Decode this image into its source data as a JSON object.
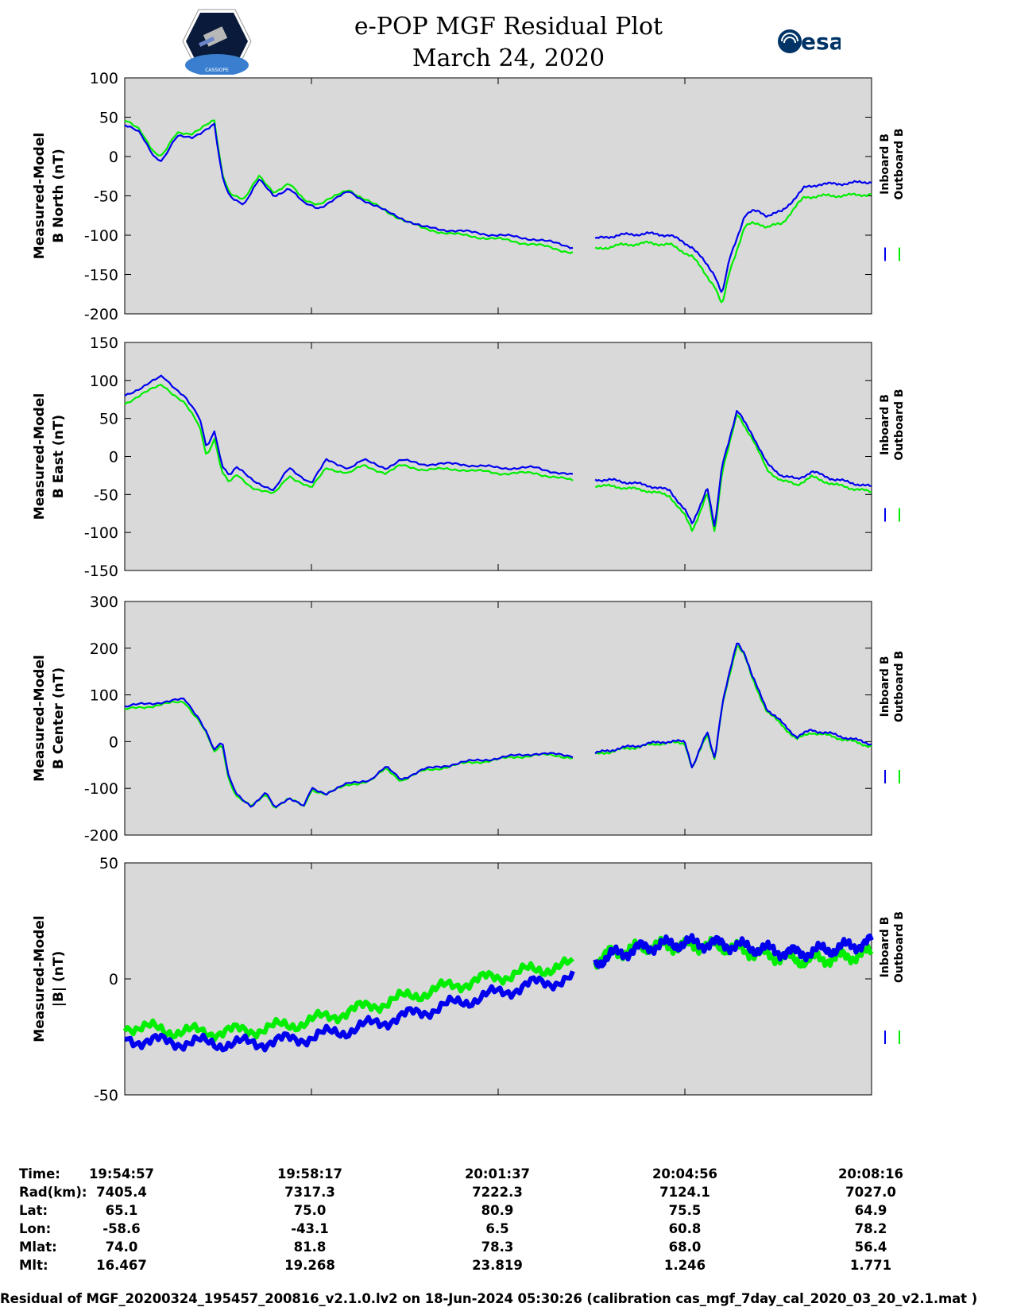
{
  "header": {
    "title_line1": "e-POP MGF Residual Plot",
    "title_line2": "March 24, 2020",
    "left_logo_text": "CASSIOPE",
    "right_logo_text": "esa"
  },
  "colors": {
    "inboard": "#0000ee",
    "outboard": "#00ee00",
    "panel_bg": "#d9d9d9"
  },
  "chart_data": [
    {
      "type": "line",
      "ylabel_line1": "Measured-Model",
      "ylabel_line2": "B North (nT)",
      "ylim": [
        -200,
        100
      ],
      "yticks": [
        "100",
        "50",
        "0",
        "-50",
        "-100",
        "-150",
        "-200"
      ],
      "series": [
        {
          "name": "Inboard B",
          "x": [
            0,
            0.02,
            0.04,
            0.05,
            0.07,
            0.09,
            0.1,
            0.12,
            0.13,
            0.14,
            0.16,
            0.18,
            0.2,
            0.21,
            0.22,
            0.24,
            0.26,
            0.28,
            0.3,
            0.35,
            0.4,
            0.45,
            0.5,
            0.55,
            0.6
          ],
          "y": [
            40,
            30,
            0,
            -5,
            25,
            25,
            30,
            40,
            -25,
            -50,
            -60,
            -30,
            -50,
            -45,
            -40,
            -60,
            -65,
            -55,
            -45,
            -70,
            -90,
            -95,
            -100,
            -105,
            -115
          ]
        },
        {
          "name": "Inboard B",
          "x": [
            0.63,
            0.66,
            0.7,
            0.73,
            0.76,
            0.79,
            0.8,
            0.81,
            0.83,
            0.84,
            0.85,
            0.86,
            0.88,
            0.9,
            0.91,
            0.93,
            0.95,
            1.0
          ],
          "y": [
            -105,
            -100,
            -98,
            -100,
            -115,
            -150,
            -175,
            -130,
            -75,
            -70,
            -70,
            -75,
            -70,
            -50,
            -40,
            -35,
            -35,
            -32
          ]
        },
        {
          "name": "Outboard B",
          "x": [
            0,
            0.02,
            0.04,
            0.05,
            0.07,
            0.09,
            0.1,
            0.12,
            0.13,
            0.14,
            0.16,
            0.18,
            0.2,
            0.21,
            0.22,
            0.24,
            0.26,
            0.28,
            0.3,
            0.35,
            0.4,
            0.45,
            0.5,
            0.55,
            0.6
          ],
          "y": [
            45,
            35,
            5,
            0,
            30,
            30,
            35,
            45,
            -20,
            -45,
            -55,
            -25,
            -45,
            -40,
            -35,
            -55,
            -60,
            -52,
            -42,
            -70,
            -92,
            -100,
            -105,
            -112,
            -122
          ]
        },
        {
          "name": "Outboard B",
          "x": [
            0.63,
            0.66,
            0.7,
            0.73,
            0.76,
            0.79,
            0.8,
            0.81,
            0.83,
            0.84,
            0.85,
            0.86,
            0.88,
            0.9,
            0.91,
            0.93,
            0.95,
            1.0
          ],
          "y": [
            -118,
            -113,
            -110,
            -112,
            -127,
            -165,
            -190,
            -145,
            -90,
            -85,
            -85,
            -90,
            -85,
            -62,
            -52,
            -50,
            -50,
            -48
          ]
        }
      ]
    },
    {
      "type": "line",
      "ylabel_line1": "Measured-Model",
      "ylabel_line2": "B East (nT)",
      "ylim": [
        -150,
        150
      ],
      "yticks": [
        "150",
        "100",
        "50",
        "0",
        "-50",
        "-100",
        "-150"
      ],
      "series": [
        {
          "name": "Inboard B",
          "x": [
            0,
            0.02,
            0.05,
            0.08,
            0.1,
            0.11,
            0.12,
            0.13,
            0.14,
            0.15,
            0.17,
            0.2,
            0.22,
            0.25,
            0.27,
            0.3,
            0.32,
            0.35,
            0.37,
            0.4,
            0.45,
            0.5,
            0.55,
            0.6
          ],
          "y": [
            80,
            90,
            105,
            80,
            50,
            10,
            35,
            -10,
            -25,
            -15,
            -30,
            -45,
            -15,
            -35,
            -5,
            -15,
            -5,
            -15,
            -5,
            -10,
            -10,
            -15,
            -15,
            -25
          ]
        },
        {
          "name": "Inboard B",
          "x": [
            0.63,
            0.66,
            0.7,
            0.73,
            0.75,
            0.76,
            0.78,
            0.79,
            0.8,
            0.82,
            0.84,
            0.86,
            0.88,
            0.9,
            0.92,
            0.95,
            1.0
          ],
          "y": [
            -30,
            -32,
            -38,
            -45,
            -70,
            -90,
            -40,
            -95,
            -10,
            60,
            30,
            -10,
            -25,
            -30,
            -20,
            -30,
            -40
          ]
        },
        {
          "name": "Outboard B",
          "x": [
            0,
            0.02,
            0.05,
            0.08,
            0.1,
            0.11,
            0.12,
            0.13,
            0.14,
            0.15,
            0.17,
            0.2,
            0.22,
            0.25,
            0.27,
            0.3,
            0.32,
            0.35,
            0.37,
            0.4,
            0.45,
            0.5,
            0.55,
            0.6
          ],
          "y": [
            70,
            80,
            95,
            70,
            40,
            0,
            25,
            -20,
            -35,
            -25,
            -40,
            -50,
            -25,
            -42,
            -15,
            -22,
            -12,
            -22,
            -12,
            -17,
            -17,
            -22,
            -22,
            -32
          ]
        },
        {
          "name": "Outboard B",
          "x": [
            0.63,
            0.66,
            0.7,
            0.73,
            0.75,
            0.76,
            0.78,
            0.79,
            0.8,
            0.82,
            0.84,
            0.86,
            0.88,
            0.9,
            0.92,
            0.95,
            1.0
          ],
          "y": [
            -38,
            -40,
            -45,
            -52,
            -78,
            -98,
            -48,
            -102,
            -18,
            55,
            25,
            -18,
            -32,
            -37,
            -27,
            -37,
            -47
          ]
        }
      ]
    },
    {
      "type": "line",
      "ylabel_line1": "Measured-Model",
      "ylabel_line2": "B Center (nT)",
      "ylim": [
        -200,
        300
      ],
      "yticks": [
        "300",
        "200",
        "100",
        "0",
        "-100",
        "-200"
      ],
      "series": [
        {
          "name": "Inboard B",
          "x": [
            0,
            0.05,
            0.08,
            0.1,
            0.11,
            0.12,
            0.13,
            0.14,
            0.15,
            0.17,
            0.19,
            0.2,
            0.22,
            0.24,
            0.25,
            0.27,
            0.3,
            0.33,
            0.35,
            0.37,
            0.4,
            0.45,
            0.5,
            0.55,
            0.6
          ],
          "y": [
            75,
            85,
            90,
            50,
            20,
            -20,
            0,
            -80,
            -110,
            -140,
            -110,
            -140,
            -120,
            -140,
            -100,
            -110,
            -90,
            -80,
            -55,
            -80,
            -60,
            -45,
            -35,
            -25,
            -30
          ]
        },
        {
          "name": "Inboard B",
          "x": [
            0.63,
            0.66,
            0.7,
            0.72,
            0.75,
            0.76,
            0.78,
            0.79,
            0.8,
            0.82,
            0.83,
            0.84,
            0.86,
            0.88,
            0.9,
            0.92,
            0.95,
            1.0
          ],
          "y": [
            -25,
            -15,
            -5,
            0,
            0,
            -55,
            20,
            -35,
            80,
            215,
            190,
            140,
            70,
            40,
            10,
            25,
            15,
            -5
          ]
        },
        {
          "name": "Outboard B",
          "x": [
            0,
            0.05,
            0.08,
            0.1,
            0.11,
            0.12,
            0.13,
            0.14,
            0.15,
            0.17,
            0.19,
            0.2,
            0.22,
            0.24,
            0.25,
            0.27,
            0.3,
            0.33,
            0.35,
            0.37,
            0.4,
            0.45,
            0.5,
            0.55,
            0.6
          ],
          "y": [
            68,
            80,
            85,
            45,
            15,
            -25,
            -5,
            -85,
            -115,
            -140,
            -112,
            -140,
            -122,
            -140,
            -102,
            -112,
            -92,
            -83,
            -58,
            -83,
            -63,
            -48,
            -38,
            -28,
            -33
          ]
        },
        {
          "name": "Outboard B",
          "x": [
            0.63,
            0.66,
            0.7,
            0.72,
            0.75,
            0.76,
            0.78,
            0.79,
            0.8,
            0.82,
            0.83,
            0.84,
            0.86,
            0.88,
            0.9,
            0.92,
            0.95,
            1.0
          ],
          "y": [
            -28,
            -18,
            -8,
            -3,
            -3,
            -58,
            17,
            -38,
            75,
            210,
            185,
            135,
            65,
            35,
            5,
            20,
            10,
            -10
          ]
        }
      ]
    },
    {
      "type": "line",
      "ylabel_line1": "Measured-Model",
      "ylabel_line2": "|B| (nT)",
      "ylim": [
        -50,
        50
      ],
      "yticks": [
        "50",
        "0",
        "-50"
      ],
      "series": [
        {
          "name": "Inboard B",
          "x": [
            0,
            0.05,
            0.1,
            0.15,
            0.2,
            0.25,
            0.3,
            0.35,
            0.4,
            0.45,
            0.5,
            0.55,
            0.6
          ],
          "y": [
            -26,
            -27,
            -27.5,
            -28,
            -27,
            -25,
            -22,
            -18,
            -14,
            -10,
            -6,
            -2,
            0
          ]
        },
        {
          "name": "Inboard B",
          "x": [
            0.63,
            0.65,
            0.7,
            0.75,
            0.8,
            0.85,
            0.9,
            0.95,
            1.0
          ],
          "y": [
            7,
            10,
            14,
            15.5,
            15,
            13,
            11,
            13,
            16
          ]
        },
        {
          "name": "Outboard B",
          "x": [
            0,
            0.05,
            0.1,
            0.15,
            0.2,
            0.25,
            0.3,
            0.35,
            0.4,
            0.45,
            0.5,
            0.55,
            0.6
          ],
          "y": [
            -20,
            -22,
            -23,
            -22.5,
            -21,
            -18,
            -14,
            -10,
            -6,
            -2,
            1,
            4,
            6
          ]
        },
        {
          "name": "Outboard B",
          "x": [
            0.63,
            0.65,
            0.7,
            0.75,
            0.8,
            0.85,
            0.9,
            0.95,
            1.0
          ],
          "y": [
            8,
            11,
            14,
            14.5,
            14,
            11,
            8,
            9,
            11
          ]
        }
      ]
    }
  ],
  "legend": {
    "inboard": "Inboard B",
    "outboard": "Outboard B"
  },
  "info_table": {
    "labels": [
      "Time:",
      "Rad(km):",
      "Lat:",
      "Lon:",
      "Mlat:",
      "Mlt:"
    ],
    "columns": [
      [
        "19:54:57",
        "7405.4",
        "65.1",
        "-58.6",
        "74.0",
        "16.467"
      ],
      [
        "19:58:17",
        "7317.3",
        "75.0",
        "-43.1",
        "81.8",
        "19.268"
      ],
      [
        "20:01:37",
        "7222.3",
        "80.9",
        "6.5",
        "78.3",
        "23.819"
      ],
      [
        "20:04:56",
        "7124.1",
        "75.5",
        "60.8",
        "68.0",
        "1.246"
      ],
      [
        "20:08:16",
        "7027.0",
        "64.9",
        "78.2",
        "56.4",
        "1.771"
      ]
    ]
  },
  "footer": "Residual of MGF_20200324_195457_200816_v2.1.0.lv2 on 18-Jun-2024 05:30:26 (calibration cas_mgf_7day_cal_2020_03_20_v2.1.mat )"
}
